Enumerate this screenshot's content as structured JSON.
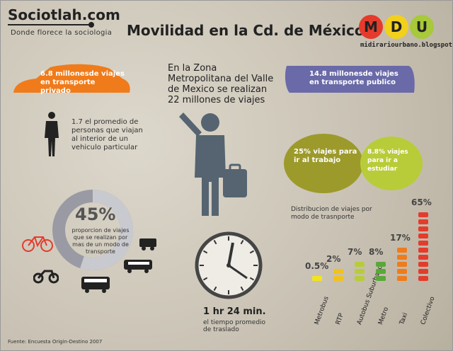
{
  "brand": {
    "name": "Sociotlah.com",
    "tagline": "Donde florece la sociologia"
  },
  "title": "Movilidad en la Cd. de México",
  "mdu": {
    "letters": [
      "M",
      "D",
      "U"
    ],
    "colors": [
      "#e53b2c",
      "#f2d01c",
      "#a7c93a"
    ],
    "url": "midirariourbano.blogspot.mx"
  },
  "private": {
    "text": "6.8 millonesde viajes en transporte privado",
    "color": "#f07b1a"
  },
  "public": {
    "text": "14.8 millonesde viajes en transporte publico",
    "color": "#6a6aa8"
  },
  "intro": "En la Zona Metropolitana del Valle de Mexico se realizan 22 millones de viajes",
  "avg_people": "1.7 el promedio de personas que viajan al interior de un vehiculo particular",
  "purposes": [
    {
      "text": "25% viajes para ir al trabajo",
      "color": "#9c9a2a"
    },
    {
      "text": "8.8% viajes para ir a estudiar",
      "color": "#b8cc3a"
    }
  ],
  "donut": {
    "value": "45%",
    "percent": 45,
    "text": "proporcion de viajes que se realizan por mas de un modo de transporte"
  },
  "time": {
    "value": "1 hr 24 min.",
    "text": "el tiempo promedio de traslado"
  },
  "chart_data": {
    "type": "bar",
    "title": "Distribucion de viajes por modo de trasnporte",
    "categories": [
      "Metrobus",
      "RTP",
      "Autobus Suburbano",
      "Metro",
      "Taxi",
      "Colectivo"
    ],
    "values": [
      0.5,
      2,
      7,
      8,
      17,
      65
    ],
    "labels": [
      "0.5%",
      "2%",
      "7%",
      "8%",
      "17%",
      "65%"
    ],
    "colors": [
      "#f2e41c",
      "#f2c21c",
      "#b8cc3a",
      "#5aa83a",
      "#f07b1a",
      "#e53b2c"
    ]
  },
  "source": "Fuente: Encuesta Origin-Destino 2007"
}
